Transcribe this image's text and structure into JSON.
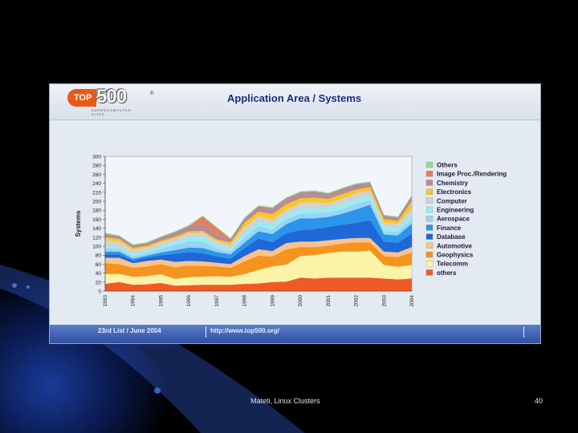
{
  "slide": {
    "footer_text": "Mateti, Linux Clusters",
    "page_number": "40"
  },
  "header": {
    "logo_top": "TOP",
    "logo_500": "500",
    "logo_sub": "SUPERCOMPUTER SITES",
    "logo_mark": "®",
    "title": "Application Area / Systems"
  },
  "footer": {
    "left": "23rd List / June 2004",
    "right": "http://www.top500.org/"
  },
  "colors": {
    "page_bg": "#000000",
    "gradient_blue": "#1a3fa0",
    "title_blue": "#1c2f7a"
  },
  "chart_data": {
    "type": "area",
    "stacked": true,
    "title": "Application Area / Systems",
    "ylabel": "Systems",
    "xlabel": "",
    "ylim": [
      0,
      300
    ],
    "yticks": [
      0,
      20,
      40,
      60,
      80,
      100,
      120,
      140,
      160,
      180,
      200,
      220,
      240,
      260,
      280,
      300
    ],
    "xtick_labels": [
      "1993",
      "1994",
      "1995",
      "1996",
      "1997",
      "1998",
      "1999",
      "2000",
      "2001",
      "2002",
      "2003",
      "2004"
    ],
    "x": [
      0,
      1,
      2,
      3,
      4,
      5,
      6,
      7,
      8,
      9,
      10,
      11,
      12,
      13,
      14,
      15,
      16,
      17,
      18,
      19,
      20,
      21,
      22
    ],
    "series": [
      {
        "name": "others",
        "color": "#f05a28",
        "values": [
          16,
          20,
          14,
          15,
          18,
          12,
          13,
          14,
          14,
          14,
          16,
          17,
          20,
          21,
          30,
          28,
          30,
          30,
          30,
          30,
          28,
          26,
          28
        ]
      },
      {
        "name": "Telecomm",
        "color": "#fbf3a7",
        "values": [
          22,
          18,
          18,
          18,
          20,
          15,
          18,
          18,
          19,
          18,
          22,
          30,
          35,
          38,
          48,
          52,
          55,
          58,
          58,
          60,
          30,
          28,
          30
        ]
      },
      {
        "name": "Geophysics",
        "color": "#f5931f",
        "values": [
          24,
          22,
          20,
          22,
          22,
          26,
          26,
          24,
          22,
          20,
          28,
          32,
          22,
          34,
          20,
          18,
          16,
          18,
          20,
          18,
          20,
          22,
          28
        ]
      },
      {
        "name": "Automotive",
        "color": "#fbc28e",
        "values": [
          12,
          14,
          10,
          12,
          10,
          12,
          10,
          10,
          8,
          8,
          12,
          14,
          12,
          14,
          12,
          12,
          12,
          10,
          10,
          10,
          10,
          10,
          12
        ]
      },
      {
        "name": "Database",
        "color": "#1f68d8",
        "values": [
          8,
          8,
          6,
          8,
          10,
          18,
          20,
          18,
          14,
          12,
          18,
          24,
          20,
          22,
          26,
          28,
          30,
          32,
          34,
          40,
          22,
          22,
          30
        ]
      },
      {
        "name": "Finance",
        "color": "#2a95ea",
        "values": [
          6,
          6,
          4,
          4,
          6,
          8,
          10,
          12,
          10,
          10,
          12,
          16,
          18,
          20,
          26,
          24,
          22,
          24,
          30,
          34,
          16,
          16,
          22
        ]
      },
      {
        "name": "Aerospace",
        "color": "#9bd2f5",
        "values": [
          8,
          6,
          6,
          6,
          8,
          12,
          14,
          14,
          8,
          6,
          12,
          12,
          10,
          12,
          10,
          12,
          10,
          10,
          12,
          10,
          8,
          8,
          10
        ]
      },
      {
        "name": "Engineering",
        "color": "#8ff0f5",
        "values": [
          4,
          4,
          4,
          4,
          6,
          6,
          8,
          10,
          8,
          6,
          8,
          10,
          10,
          8,
          10,
          10,
          8,
          10,
          10,
          10,
          8,
          8,
          10
        ]
      },
      {
        "name": "Computer",
        "color": "#d2d2d2",
        "values": [
          14,
          12,
          10,
          8,
          8,
          8,
          10,
          10,
          8,
          8,
          14,
          12,
          12,
          12,
          14,
          14,
          12,
          14,
          14,
          12,
          10,
          10,
          14
        ]
      },
      {
        "name": "Electronics",
        "color": "#fcc71e",
        "values": [
          6,
          6,
          4,
          4,
          4,
          4,
          4,
          4,
          4,
          6,
          10,
          10,
          12,
          12,
          10,
          10,
          10,
          10,
          8,
          8,
          8,
          6,
          16
        ]
      },
      {
        "name": "Chemistry",
        "color": "#b58c98",
        "values": [
          8,
          6,
          6,
          6,
          8,
          10,
          12,
          14,
          12,
          8,
          10,
          12,
          14,
          14,
          14,
          14,
          12,
          12,
          12,
          10,
          8,
          8,
          12
        ]
      },
      {
        "name": "Image Proc./Rendering",
        "color": "#e87e60",
        "values": [
          0,
          0,
          0,
          0,
          0,
          0,
          0,
          18,
          14,
          0,
          0,
          0,
          0,
          0,
          0,
          0,
          0,
          0,
          0,
          0,
          0,
          0,
          0
        ]
      },
      {
        "name": "Others",
        "color": "#94dd8c",
        "values": [
          2,
          2,
          2,
          2,
          2,
          2,
          2,
          2,
          2,
          2,
          2,
          2,
          2,
          2,
          2,
          2,
          2,
          2,
          2,
          2,
          2,
          2,
          2
        ]
      }
    ],
    "legend_labels": [
      "Others",
      "Image Proc./Rendering",
      "Chemistry",
      "Electronics",
      "Computer",
      "Engineering",
      "Aerospace",
      "Finance",
      "Database",
      "Automotive",
      "Geophysics",
      "Telecomm",
      "others"
    ],
    "legend_position": "right",
    "grid": false
  }
}
